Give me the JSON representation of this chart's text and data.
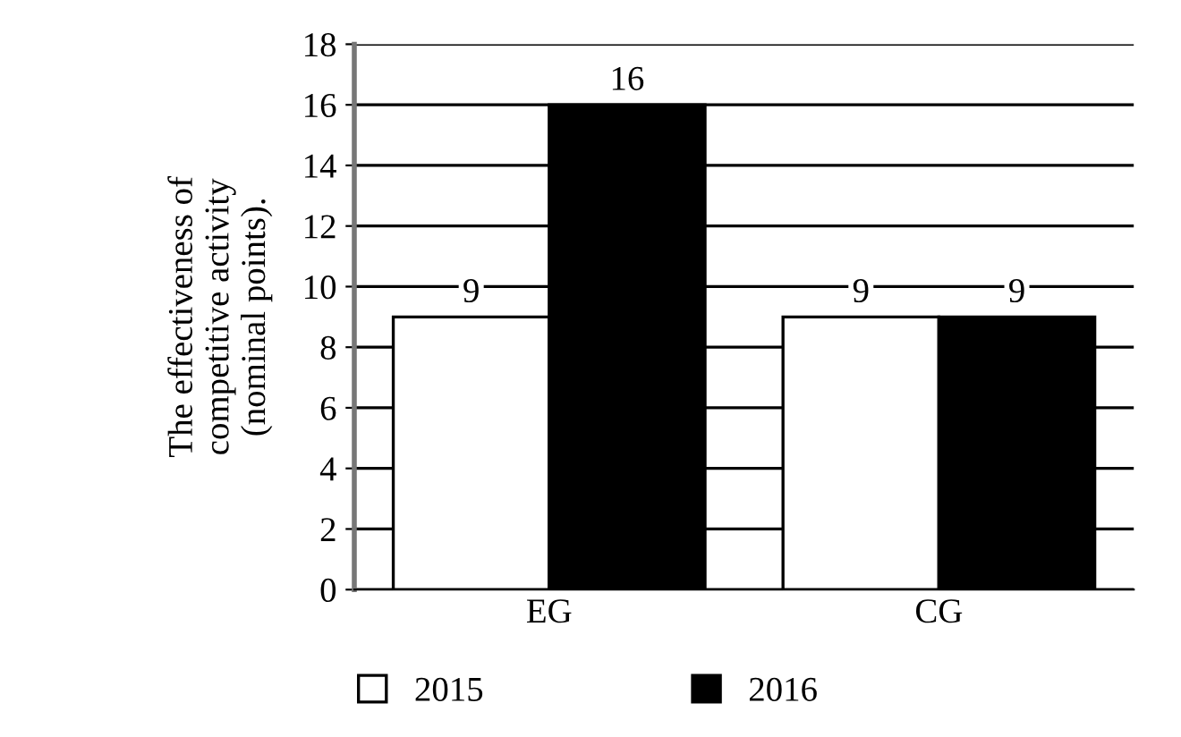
{
  "chart_data": {
    "type": "bar",
    "ylabel": "The effectiveness of\ncompetitive activity\n(nominal points).",
    "categories": [
      "EG",
      "CG"
    ],
    "series": [
      {
        "name": "2015",
        "color": "#ffffff",
        "values": [
          9,
          9
        ]
      },
      {
        "name": "2016",
        "color": "#000000",
        "values": [
          16,
          9
        ]
      }
    ],
    "ylim": [
      0,
      18
    ],
    "yticks": [
      0,
      2,
      4,
      6,
      8,
      10,
      12,
      14,
      16,
      18
    ],
    "grid": "y",
    "legend": "bottom",
    "data_labels": true
  }
}
